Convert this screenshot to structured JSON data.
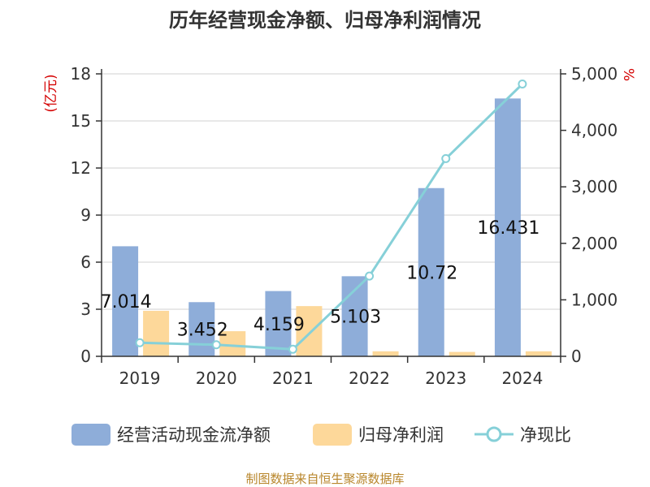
{
  "title": "历年经营现金净额、归母净利润情况",
  "source_note": "制图数据来自恒生聚源数据库",
  "chart_data": {
    "type": "bar",
    "categories": [
      "2019",
      "2020",
      "2021",
      "2022",
      "2023",
      "2024"
    ],
    "series": [
      {
        "name": "经营活动现金流净额",
        "type": "bar",
        "axis": "left",
        "color": "#8eadd9",
        "values": [
          7.014,
          3.452,
          4.159,
          5.103,
          10.72,
          16.431
        ]
      },
      {
        "name": "归母净利润",
        "type": "bar",
        "axis": "left",
        "color": "#fdd89a",
        "values": [
          2.9,
          1.6,
          3.2,
          0.32,
          0.28,
          0.32
        ]
      },
      {
        "name": "净现比",
        "type": "line",
        "axis": "right",
        "color": "#86d0d8",
        "values": [
          240,
          205,
          125,
          1420,
          3500,
          4820
        ]
      }
    ],
    "data_labels": [
      "7.014",
      "3.452",
      "4.159",
      "5.103",
      "10.72",
      "16.431"
    ],
    "left_axis": {
      "unit": "(亿元)",
      "ylim": [
        0,
        18
      ],
      "ticks": [
        "0",
        "3",
        "6",
        "9",
        "12",
        "15",
        "18"
      ]
    },
    "right_axis": {
      "unit": "%",
      "ylim": [
        0,
        5000
      ],
      "ticks": [
        "0",
        "1,000",
        "2,000",
        "3,000",
        "4,000",
        "5,000"
      ]
    },
    "grid": true,
    "legend_position": "bottom"
  }
}
